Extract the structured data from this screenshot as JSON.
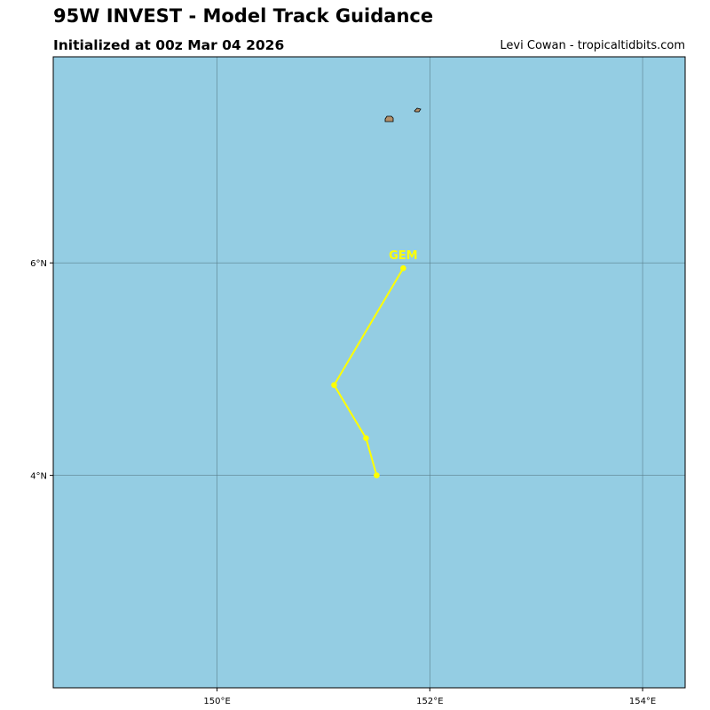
{
  "header": {
    "title": "95W INVEST - Model Track Guidance",
    "subtitle": "Initialized at 00z Mar 04 2026",
    "credit": "Levi Cowan - tropicaltidbits.com"
  },
  "map": {
    "ocean_color": "#94CDE3",
    "land_color": "#b4906a",
    "grid_color": "#5a7f8c",
    "lon_range": [
      148.46,
      154.4
    ],
    "lat_range": [
      2.0,
      7.94
    ],
    "lon_ticks": [
      {
        "value": 150,
        "label": "150°E"
      },
      {
        "value": 152,
        "label": "152°E"
      },
      {
        "value": 154,
        "label": "154°E"
      }
    ],
    "lat_ticks": [
      {
        "value": 4,
        "label": "4°N"
      },
      {
        "value": 6,
        "label": "6°N"
      }
    ]
  },
  "tracks": [
    {
      "name": "GEM",
      "color": "#ffff00",
      "points": [
        {
          "lon": 151.5,
          "lat": 4.0
        },
        {
          "lon": 151.4,
          "lat": 4.35
        },
        {
          "lon": 151.1,
          "lat": 4.85
        },
        {
          "lon": 151.75,
          "lat": 5.95
        }
      ]
    }
  ]
}
